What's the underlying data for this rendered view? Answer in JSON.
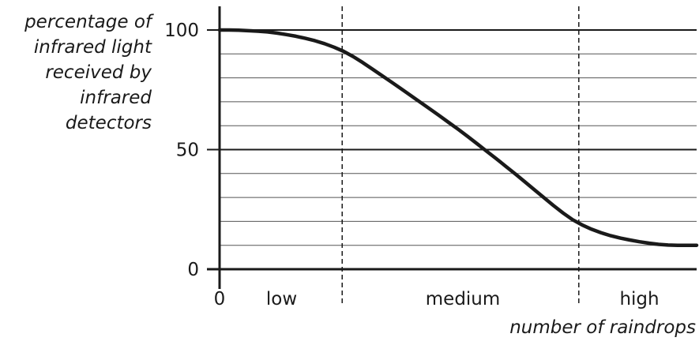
{
  "chart_data": {
    "type": "line",
    "ylabel_lines": [
      "percentage of",
      "infrared light",
      "received by",
      "infrared",
      "detectors"
    ],
    "xlabel": "number of raindrops",
    "ylim": [
      0,
      105
    ],
    "xlim": [
      0,
      100
    ],
    "y_ticks": [
      {
        "value": 0,
        "label": "0"
      },
      {
        "value": 50,
        "label": "50"
      },
      {
        "value": 100,
        "label": "100"
      }
    ],
    "y_minor_gridlines": [
      10,
      20,
      30,
      40,
      60,
      70,
      80,
      90
    ],
    "x_origin_label": "0",
    "x_regions": [
      {
        "label": "low",
        "center": 13
      },
      {
        "label": "medium",
        "center": 51
      },
      {
        "label": "high",
        "center": 88
      }
    ],
    "x_dividers": [
      25.7,
      75.3
    ],
    "grid": true,
    "series": [
      {
        "x": [
          0,
          2,
          4,
          6,
          8,
          10,
          12,
          14,
          16,
          18,
          20,
          22,
          24,
          26,
          28,
          30,
          32,
          34,
          36,
          38,
          40,
          42,
          44,
          46,
          48,
          50,
          52,
          54,
          56,
          58,
          60,
          62,
          64,
          66,
          68,
          70,
          72,
          74,
          76,
          78,
          80,
          82,
          84,
          86,
          88,
          90,
          92,
          94,
          96,
          98,
          100
        ],
        "y": [
          100,
          100,
          99.9,
          99.7,
          99.5,
          99.2,
          98.7,
          98.1,
          97.4,
          96.5,
          95.5,
          94.3,
          92.8,
          91.1,
          88.9,
          86.4,
          83.7,
          81.0,
          78.3,
          75.5,
          72.7,
          69.9,
          67.1,
          64.3,
          61.4,
          58.5,
          55.5,
          52.4,
          49.3,
          46.2,
          43.0,
          39.8,
          36.5,
          33.2,
          29.9,
          26.6,
          23.5,
          20.7,
          18.5,
          16.7,
          15.2,
          14.0,
          13.0,
          12.2,
          11.5,
          10.9,
          10.4,
          10.1,
          10.0,
          10.0,
          10.0
        ]
      }
    ]
  }
}
